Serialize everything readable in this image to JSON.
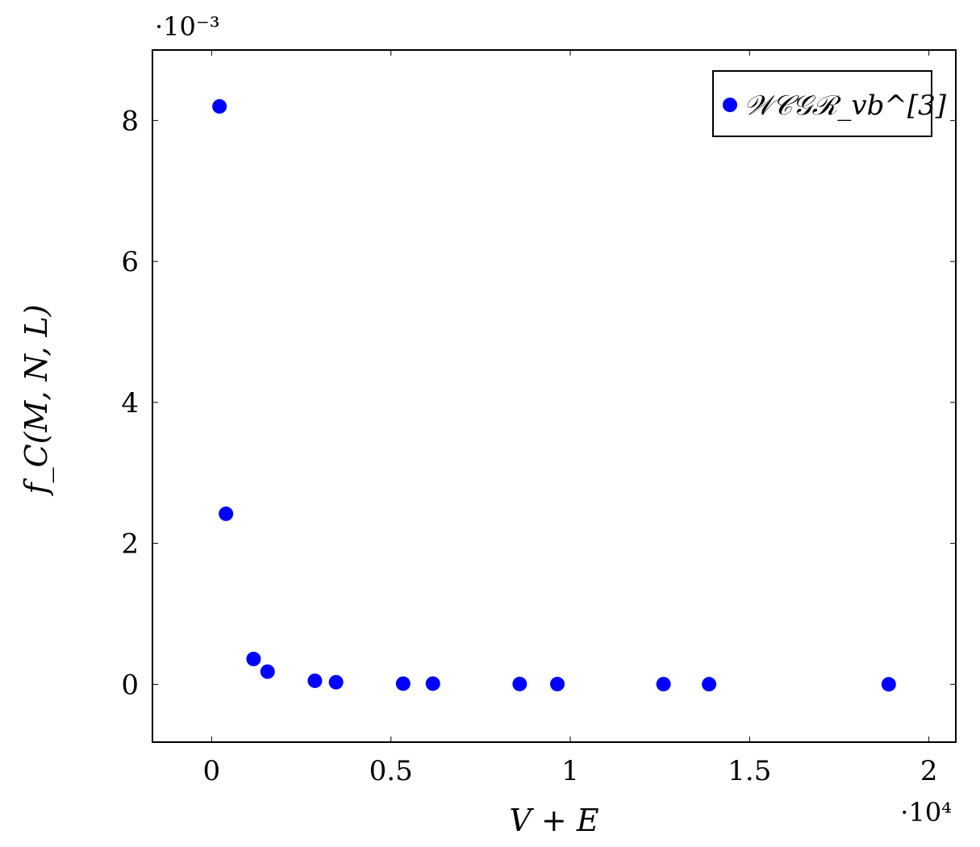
{
  "chart_data": {
    "type": "scatter",
    "title": "",
    "xlabel": "V + E",
    "ylabel": "f_C(M, N, L)",
    "x_scale_label": "·10⁴",
    "y_scale_label": "·10⁻³",
    "x_ticks": [
      {
        "value": 0,
        "label": "0"
      },
      {
        "value": 5000,
        "label": "0.5"
      },
      {
        "value": 10000,
        "label": "1"
      },
      {
        "value": 15000,
        "label": "1.5"
      },
      {
        "value": 20000,
        "label": "2"
      }
    ],
    "y_ticks": [
      {
        "value": 0,
        "label": "0"
      },
      {
        "value": 0.002,
        "label": "2"
      },
      {
        "value": 0.004,
        "label": "4"
      },
      {
        "value": 0.006,
        "label": "6"
      },
      {
        "value": 0.008,
        "label": "8"
      }
    ],
    "xlim": [
      -1650,
      20750
    ],
    "ylim": [
      -0.00082,
      0.009
    ],
    "grid": false,
    "legend_position": "top-right",
    "series": [
      {
        "name": "𝒲𝒞𝒢ℛ_vb^[3]",
        "color": "#0000ff",
        "marker": "circle",
        "x": [
          220,
          400,
          1170,
          1560,
          2880,
          3470,
          5340,
          6170,
          8590,
          9640,
          12600,
          13870,
          18880
        ],
        "y": [
          0.0082,
          0.00242,
          0.00036,
          0.00018,
          5e-05,
          3e-05,
          1e-05,
          1e-05,
          5e-06,
          4e-06,
          3e-06,
          2e-06,
          1e-06
        ]
      }
    ]
  }
}
